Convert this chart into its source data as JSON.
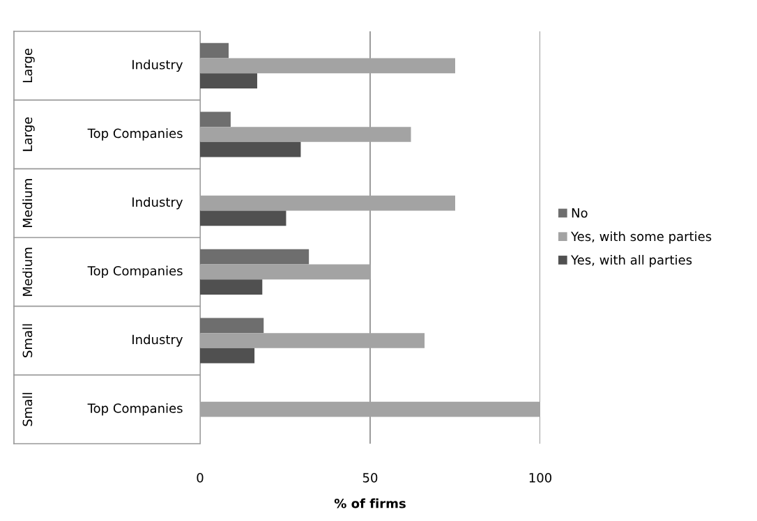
{
  "chart_data": {
    "type": "bar",
    "orientation": "horizontal",
    "categories": [
      "Industry",
      "Top Companies",
      "Industry",
      "Top Companies",
      "Industry",
      "Top Companies"
    ],
    "annotations": [
      "Large",
      "Large",
      "Medium",
      "Medium",
      "Small",
      "Small"
    ],
    "series": [
      {
        "name": "No",
        "color": "#6e6e6e",
        "values": [
          8.4,
          9,
          0,
          32,
          18.7,
          0
        ]
      },
      {
        "name": "Yes, with some parties",
        "color": "#a3a3a3",
        "values": [
          75,
          62,
          75,
          50,
          66,
          100
        ]
      },
      {
        "name": "Yes, with all parties",
        "color": "#505050",
        "values": [
          16.8,
          29.6,
          25.3,
          18.3,
          16,
          0
        ]
      }
    ],
    "xlabel": "% of firms",
    "xlim": [
      0,
      100
    ],
    "xticks": [
      0,
      50,
      100
    ],
    "grid": "x",
    "legend": "right"
  }
}
